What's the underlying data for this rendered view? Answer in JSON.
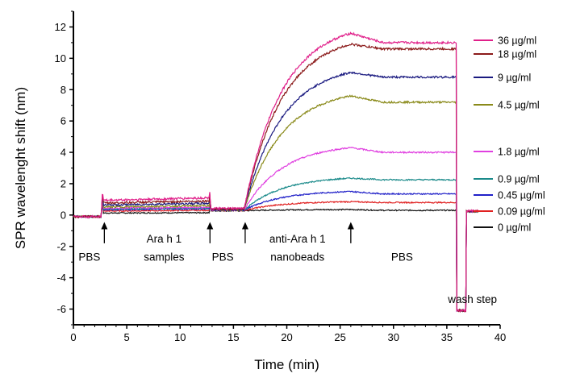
{
  "chart_data": {
    "type": "line",
    "xlabel": "Time (min)",
    "ylabel": "SPR wavelenght shift (nm)",
    "xlim": [
      0,
      40
    ],
    "ylim": [
      -7,
      13
    ],
    "x_ticks": [
      0,
      5,
      10,
      15,
      20,
      25,
      30,
      35,
      40
    ],
    "y_ticks": [
      -6,
      -4,
      -2,
      0,
      2,
      4,
      6,
      8,
      10,
      12
    ],
    "grid": false,
    "legend_position": "right",
    "phase_times": [
      2.7,
      12.8,
      16,
      26,
      36
    ],
    "wash": {
      "start": 35.9,
      "end": 36.8,
      "level": -6.1
    },
    "annotations": [
      {
        "text": "PBS",
        "x": 1.5,
        "y": -2.9
      },
      {
        "text": "Ara h 1",
        "x": 8.5,
        "y": -1.75
      },
      {
        "text": "samples",
        "x": 8.5,
        "y": -2.9
      },
      {
        "text": "PBS",
        "x": 14.0,
        "y": -2.9
      },
      {
        "text": "anti-Ara h 1",
        "x": 21.0,
        "y": -1.75
      },
      {
        "text": "nanobeads",
        "x": 21.0,
        "y": -2.9
      },
      {
        "text": "PBS",
        "x": 30.8,
        "y": -2.9
      },
      {
        "text": "wash step",
        "x": 39.7,
        "y": -5.6
      }
    ],
    "arrows_at": [
      2.9,
      12.8,
      16.1,
      26.0
    ],
    "series": [
      {
        "name": "36 µg/ml",
        "color": "#E0208A",
        "sample_level": 1.1,
        "peak": 11.6,
        "final": 11.0
      },
      {
        "name": "18 µg/ml",
        "color": "#8B1A1A",
        "sample_level": 0.9,
        "peak": 10.9,
        "final": 10.6
      },
      {
        "name": "9 µg/ml",
        "color": "#1A1A80",
        "sample_level": 0.75,
        "peak": 9.1,
        "final": 8.8
      },
      {
        "name": "4.5 µg/ml",
        "color": "#8A8A1A",
        "sample_level": 0.6,
        "peak": 7.6,
        "final": 7.2
      },
      {
        "name": "1.8 µg/ml",
        "color": "#E040E0",
        "sample_level": 0.5,
        "peak": 4.3,
        "final": 4.0
      },
      {
        "name": "0.9 µg/ml",
        "color": "#1A8A8A",
        "sample_level": 0.45,
        "peak": 2.35,
        "final": 2.25
      },
      {
        "name": "0.45 µg/ml",
        "color": "#2020C8",
        "sample_level": 0.4,
        "peak": 1.5,
        "final": 1.35
      },
      {
        "name": "0.09 µg/ml",
        "color": "#E02020",
        "sample_level": 0.3,
        "peak": 0.85,
        "final": 0.8
      },
      {
        "name": "0 µg/ml",
        "color": "#111111",
        "sample_level": 0.15,
        "peak": 0.35,
        "final": 0.3
      }
    ]
  }
}
